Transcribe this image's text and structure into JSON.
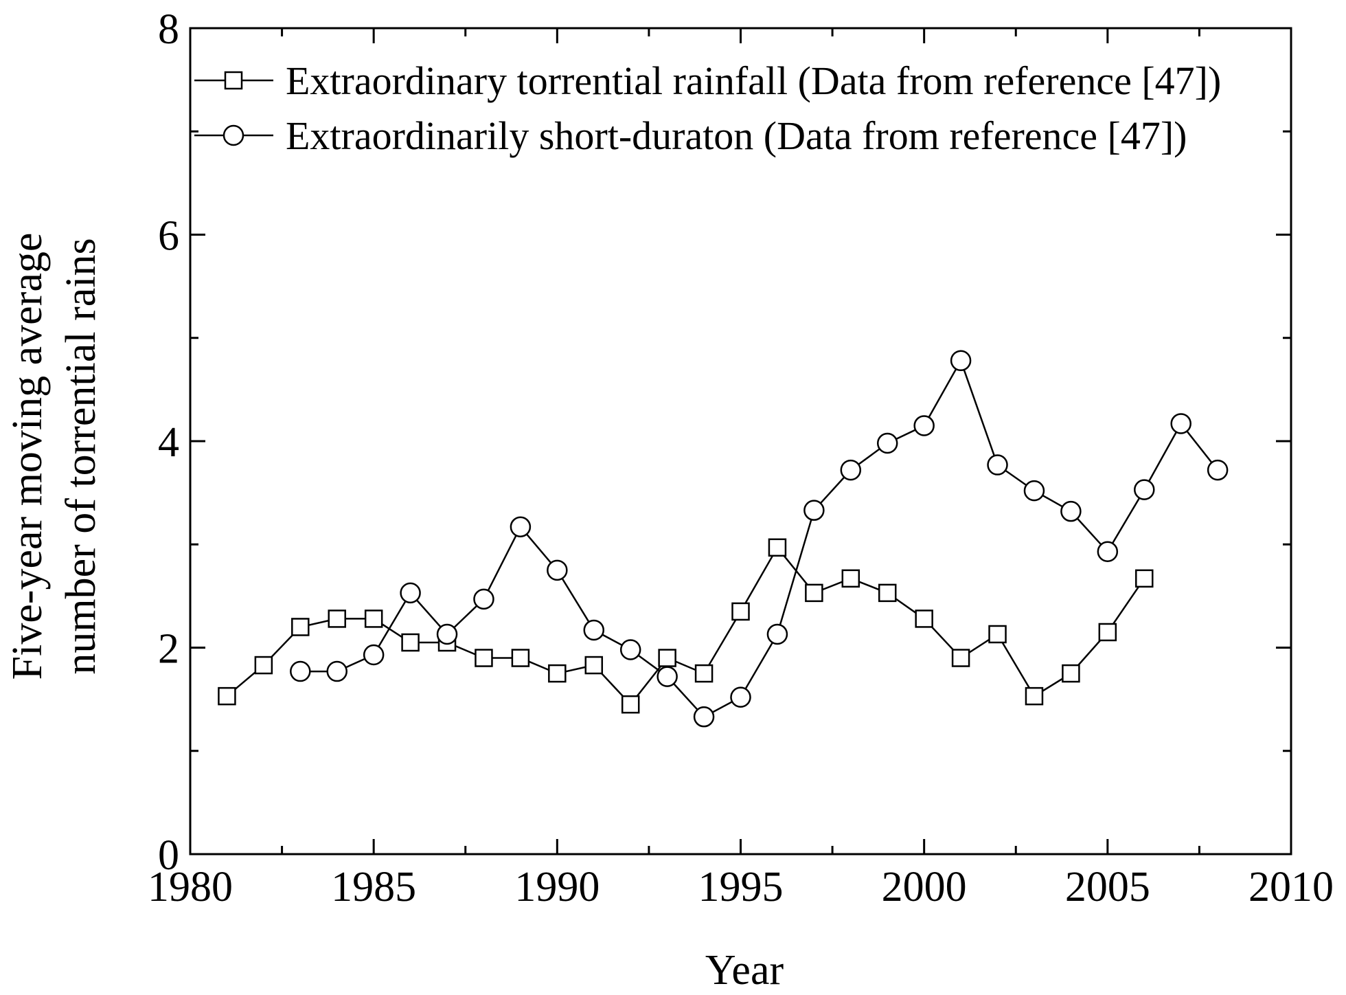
{
  "chart_data": {
    "type": "line",
    "title": "",
    "xlabel": "Year",
    "ylabel_lines": [
      "Five-year moving average",
      "number of torrential rains"
    ],
    "xlim": [
      1980,
      2010
    ],
    "ylim": [
      0,
      8
    ],
    "xticks": [
      1980,
      1985,
      1990,
      1995,
      2000,
      2005,
      2010
    ],
    "yticks": [
      0,
      2,
      4,
      6,
      8
    ],
    "xtick_labels": [
      "1980",
      "1985",
      "1990",
      "1995",
      "2000",
      "2005",
      "2010"
    ],
    "ytick_labels": [
      "0",
      "2",
      "4",
      "6",
      "8"
    ],
    "grid": false,
    "legend_position": "top-left",
    "series": [
      {
        "name": "Extraordinary torrential rainfall (Data from reference [47])",
        "marker": "square",
        "x": [
          1981,
          1982,
          1983,
          1984,
          1985,
          1986,
          1987,
          1988,
          1989,
          1990,
          1991,
          1992,
          1993,
          1994,
          1995,
          1996,
          1997,
          1998,
          1999,
          2000,
          2001,
          2002,
          2003,
          2004,
          2005,
          2006
        ],
        "values": [
          1.53,
          1.83,
          2.2,
          2.28,
          2.28,
          2.05,
          2.05,
          1.9,
          1.9,
          1.75,
          1.83,
          1.45,
          1.9,
          1.75,
          2.35,
          2.97,
          2.53,
          2.67,
          2.53,
          2.28,
          1.9,
          2.13,
          1.53,
          1.75,
          2.15,
          2.67
        ]
      },
      {
        "name": "Extraordinarily short-duraton (Data from reference [47])",
        "marker": "circle",
        "x": [
          1983,
          1984,
          1985,
          1986,
          1987,
          1988,
          1989,
          1990,
          1991,
          1992,
          1993,
          1994,
          1995,
          1996,
          1997,
          1998,
          1999,
          2000,
          2001,
          2002,
          2003,
          2004,
          2005,
          2006,
          2007,
          2008
        ],
        "values": [
          1.77,
          1.77,
          1.93,
          2.53,
          2.13,
          2.47,
          3.17,
          2.75,
          2.17,
          1.98,
          1.72,
          1.33,
          1.52,
          2.13,
          3.33,
          3.72,
          3.98,
          4.15,
          4.78,
          3.77,
          3.52,
          3.32,
          2.93,
          3.53,
          4.17,
          3.72
        ]
      }
    ]
  }
}
